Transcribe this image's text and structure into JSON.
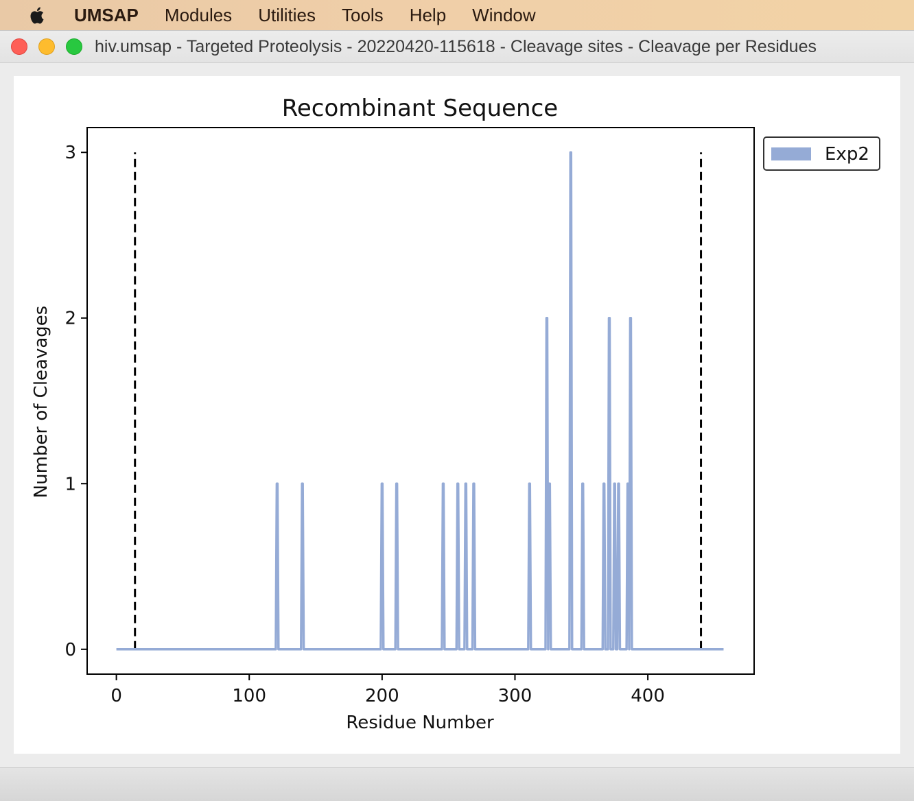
{
  "menubar": {
    "apple_icon": "apple-logo-icon",
    "app_name": "UMSAP",
    "items": [
      "Modules",
      "Utilities",
      "Tools",
      "Help",
      "Window"
    ]
  },
  "window": {
    "title": "hiv.umsap - Targeted Proteolysis - 20220420-115618 - Cleavage sites - Cleavage per Residues",
    "controls": [
      "close",
      "minimize",
      "maximize"
    ]
  },
  "colors": {
    "series": "#95abd6",
    "marker_lines": "#000000"
  },
  "chart_data": {
    "type": "line",
    "title": "Recombinant Sequence",
    "xlabel": "Residue Number",
    "ylabel": "Number of Cleavages",
    "xlim": [
      -22,
      480
    ],
    "ylim": [
      -0.15,
      3.15
    ],
    "x_ticks": [
      0,
      100,
      200,
      300,
      400
    ],
    "y_ticks": [
      0,
      1,
      2,
      3
    ],
    "grid": false,
    "legend": {
      "position": "outside-top-right",
      "entries": [
        "Exp2"
      ]
    },
    "x_range": [
      0,
      457
    ],
    "series": [
      {
        "name": "Exp2",
        "color": "#95abd6",
        "cleavages": [
          {
            "x": 121,
            "y": 1
          },
          {
            "x": 140,
            "y": 1
          },
          {
            "x": 200,
            "y": 1
          },
          {
            "x": 211,
            "y": 1
          },
          {
            "x": 246,
            "y": 1
          },
          {
            "x": 257,
            "y": 1
          },
          {
            "x": 263,
            "y": 1
          },
          {
            "x": 269,
            "y": 1
          },
          {
            "x": 311,
            "y": 1
          },
          {
            "x": 324,
            "y": 2
          },
          {
            "x": 326,
            "y": 1
          },
          {
            "x": 342,
            "y": 3
          },
          {
            "x": 351,
            "y": 1
          },
          {
            "x": 367,
            "y": 1
          },
          {
            "x": 371,
            "y": 2
          },
          {
            "x": 375,
            "y": 1
          },
          {
            "x": 378,
            "y": 1
          },
          {
            "x": 385,
            "y": 1
          },
          {
            "x": 387,
            "y": 2
          }
        ]
      }
    ],
    "vertical_markers": [
      {
        "x": 14,
        "ymax": 3,
        "style": "dashed"
      },
      {
        "x": 440,
        "ymax": 3,
        "style": "dashed"
      }
    ]
  }
}
